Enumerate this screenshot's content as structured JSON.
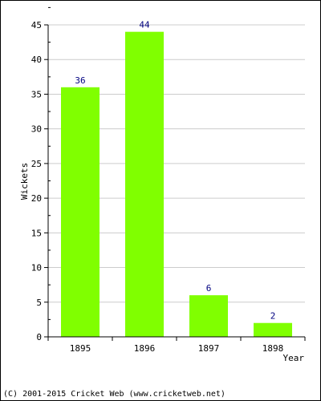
{
  "chart_data": {
    "type": "bar",
    "categories": [
      "1895",
      "1896",
      "1897",
      "1898"
    ],
    "values": [
      36,
      44,
      6,
      2
    ],
    "data_labels": [
      "36",
      "44",
      "6",
      "2"
    ],
    "ylabel": "Wickets",
    "xlabel": "Year",
    "ylim": [
      0,
      45
    ],
    "yticks": [
      "0",
      "5",
      "10",
      "15",
      "20",
      "25",
      "30",
      "35",
      "40",
      "45"
    ],
    "ytick_values": [
      0,
      5,
      10,
      15,
      20,
      25,
      30,
      35,
      40,
      45
    ],
    "grid": true,
    "legend": "none",
    "bar_color": "#80ff00",
    "label_color": "#000080",
    "grid_color": "#cccccc"
  },
  "footer": {
    "copyright": "(C) 2001-2015 Cricket Web (www.cricketweb.net)"
  }
}
